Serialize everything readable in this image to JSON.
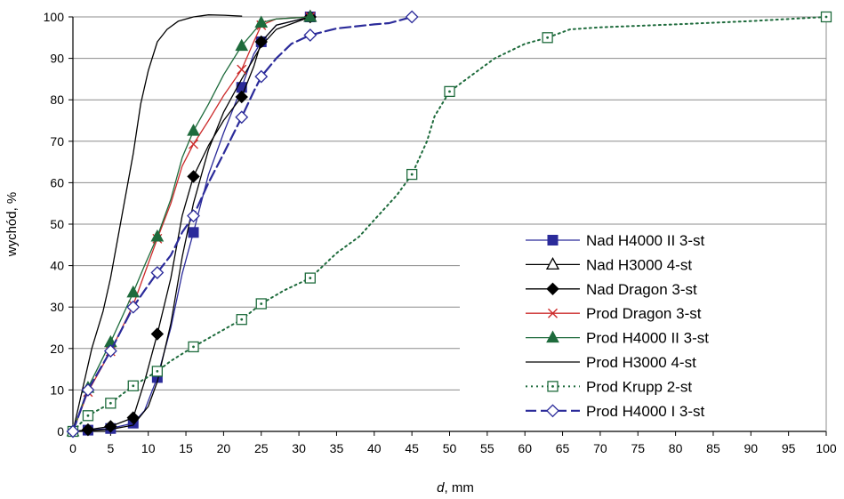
{
  "chart_data": {
    "type": "line",
    "xlabel": "d, mm",
    "xlabel_italic": "d",
    "xlabel_rest": ", mm",
    "ylabel": "wychód, %",
    "xlim": [
      0,
      100
    ],
    "ylim": [
      0,
      100
    ],
    "x_ticks": [
      "0",
      "5",
      "10",
      "15",
      "20",
      "25",
      "30",
      "35",
      "40",
      "45",
      "50",
      "55",
      "60",
      "65",
      "70",
      "75",
      "80",
      "85",
      "90",
      "95",
      "100"
    ],
    "y_ticks": [
      "0",
      "10",
      "20",
      "30",
      "40",
      "50",
      "60",
      "70",
      "80",
      "90",
      "100"
    ],
    "grid": "horizontal",
    "legend_position": "bottom-right",
    "series": [
      {
        "name": "Nad H4000 II 3-st",
        "color": "#2b2b9a",
        "dash": "solid",
        "marker": "square-filled",
        "markers": [
          [
            0,
            0
          ],
          [
            2,
            0.3
          ],
          [
            5,
            0.7
          ],
          [
            8,
            2
          ],
          [
            11.2,
            13
          ],
          [
            16,
            48
          ],
          [
            22.4,
            83
          ],
          [
            25,
            94
          ],
          [
            31.5,
            100
          ]
        ],
        "curve": [
          [
            0,
            0
          ],
          [
            2,
            0.3
          ],
          [
            5,
            0.7
          ],
          [
            8,
            2
          ],
          [
            9.5,
            5
          ],
          [
            11.2,
            13
          ],
          [
            13,
            25
          ],
          [
            14.5,
            38
          ],
          [
            16,
            48
          ],
          [
            18,
            62
          ],
          [
            20,
            72
          ],
          [
            22.4,
            83
          ],
          [
            24,
            91
          ],
          [
            25,
            94
          ],
          [
            27,
            98
          ],
          [
            31.5,
            100
          ]
        ]
      },
      {
        "name": "Nad H3000 4-st",
        "color": "#000000",
        "dash": "solid",
        "marker": "triangle-open",
        "markers": [
          [
            31.5,
            100
          ]
        ],
        "curve": [
          [
            0,
            0
          ],
          [
            2,
            0.2
          ],
          [
            5,
            0.5
          ],
          [
            8,
            1.5
          ],
          [
            10,
            6
          ],
          [
            11.2,
            12
          ],
          [
            13,
            26
          ],
          [
            14.5,
            42
          ],
          [
            16,
            55
          ],
          [
            18,
            68
          ],
          [
            20,
            77
          ],
          [
            22.4,
            85
          ],
          [
            25,
            93
          ],
          [
            27,
            97
          ],
          [
            31.5,
            100
          ]
        ]
      },
      {
        "name": "Nad Dragon 3-st",
        "color": "#000000",
        "dash": "solid",
        "marker": "diamond-filled",
        "markers": [
          [
            0,
            0
          ],
          [
            2,
            0.4
          ],
          [
            5,
            1.2
          ],
          [
            8,
            3.3
          ],
          [
            11.2,
            23.5
          ],
          [
            16,
            61.5
          ],
          [
            22.4,
            80.7
          ],
          [
            25,
            94
          ],
          [
            31.5,
            100
          ]
        ],
        "curve": [
          [
            0,
            0
          ],
          [
            2,
            0.4
          ],
          [
            5,
            1.2
          ],
          [
            8,
            3.3
          ],
          [
            9.5,
            12
          ],
          [
            11.2,
            23.5
          ],
          [
            13,
            37
          ],
          [
            14.5,
            52
          ],
          [
            16,
            61.5
          ],
          [
            18,
            69
          ],
          [
            20,
            75
          ],
          [
            22.4,
            80.7
          ],
          [
            24,
            88
          ],
          [
            25,
            94
          ],
          [
            27,
            98
          ],
          [
            31.5,
            100
          ]
        ]
      },
      {
        "name": "Prod Dragon 3-st",
        "color": "#cc2b2b",
        "dash": "solid",
        "marker": "x",
        "markers": [
          [
            0,
            0
          ],
          [
            2,
            9.5
          ],
          [
            5,
            19.3
          ],
          [
            8,
            30.5
          ],
          [
            11.2,
            46.5
          ],
          [
            16,
            69.3
          ],
          [
            22.4,
            87.3
          ],
          [
            25,
            98
          ],
          [
            31.5,
            100
          ]
        ],
        "curve": [
          [
            0,
            0
          ],
          [
            2,
            9.5
          ],
          [
            5,
            19.3
          ],
          [
            8,
            30.5
          ],
          [
            9.5,
            38
          ],
          [
            11.2,
            46.5
          ],
          [
            13,
            55
          ],
          [
            14.5,
            64
          ],
          [
            16,
            69.3
          ],
          [
            18,
            75
          ],
          [
            20,
            81
          ],
          [
            22.4,
            87.3
          ],
          [
            24,
            94
          ],
          [
            25,
            98
          ],
          [
            27,
            99.5
          ],
          [
            31.5,
            100
          ]
        ]
      },
      {
        "name": "Prod H4000 II 3-st",
        "color": "#1e6b3c",
        "dash": "solid",
        "marker": "triangle-filled",
        "markers": [
          [
            0,
            0
          ],
          [
            2,
            10.5
          ],
          [
            5,
            21.5
          ],
          [
            8,
            33.5
          ],
          [
            11.2,
            47
          ],
          [
            16,
            72.5
          ],
          [
            22.4,
            93
          ],
          [
            25,
            98.6
          ],
          [
            31.5,
            100
          ]
        ],
        "curve": [
          [
            0,
            0
          ],
          [
            2,
            10.5
          ],
          [
            5,
            21.5
          ],
          [
            8,
            33.5
          ],
          [
            9.5,
            40
          ],
          [
            11.2,
            47
          ],
          [
            13,
            56
          ],
          [
            14.5,
            66
          ],
          [
            16,
            72.5
          ],
          [
            18,
            79
          ],
          [
            20,
            86
          ],
          [
            22.4,
            93
          ],
          [
            25,
            98.6
          ],
          [
            27,
            99.5
          ],
          [
            31.5,
            100
          ]
        ]
      },
      {
        "name": "Prod H3000 4-st",
        "color": "#000000",
        "dash": "solid",
        "marker": "none",
        "markers": [],
        "curve": [
          [
            0,
            0
          ],
          [
            1.5,
            12
          ],
          [
            2.5,
            20
          ],
          [
            4,
            29
          ],
          [
            5,
            37
          ],
          [
            6,
            47
          ],
          [
            7,
            57
          ],
          [
            8,
            67
          ],
          [
            9,
            79
          ],
          [
            10,
            87
          ],
          [
            11.2,
            94
          ],
          [
            12.5,
            97
          ],
          [
            14,
            99
          ],
          [
            16,
            100
          ],
          [
            18,
            100.5
          ],
          [
            20,
            100.4
          ],
          [
            22.4,
            100.2
          ]
        ]
      },
      {
        "name": "Prod Krupp 2-st",
        "color": "#1e6b3c",
        "dash": "dotted",
        "marker": "square-open-dot",
        "markers": [
          [
            0,
            0
          ],
          [
            2,
            3.8
          ],
          [
            5,
            6.8
          ],
          [
            8,
            11
          ],
          [
            11.2,
            14.5
          ],
          [
            16,
            20.4
          ],
          [
            22.4,
            27
          ],
          [
            25,
            30.8
          ],
          [
            31.5,
            37
          ],
          [
            45,
            62
          ],
          [
            50,
            82
          ],
          [
            63,
            95
          ],
          [
            100,
            100
          ]
        ],
        "curve": [
          [
            0,
            0
          ],
          [
            2,
            3.8
          ],
          [
            5,
            6.8
          ],
          [
            8,
            11
          ],
          [
            11.2,
            14.5
          ],
          [
            13,
            17
          ],
          [
            16,
            20.4
          ],
          [
            19,
            23.5
          ],
          [
            22.4,
            27
          ],
          [
            25,
            30.8
          ],
          [
            28,
            34
          ],
          [
            31.5,
            37
          ],
          [
            35,
            43
          ],
          [
            38,
            47
          ],
          [
            40,
            51
          ],
          [
            43,
            57
          ],
          [
            45,
            62
          ],
          [
            47,
            70
          ],
          [
            48,
            76
          ],
          [
            50,
            82
          ],
          [
            53,
            86
          ],
          [
            56,
            90
          ],
          [
            60,
            93.5
          ],
          [
            63,
            95
          ],
          [
            66,
            97
          ],
          [
            70,
            97.5
          ],
          [
            80,
            98.2
          ],
          [
            90,
            99
          ],
          [
            100,
            100
          ]
        ]
      },
      {
        "name": "Prod H4000 I 3-st",
        "color": "#2b2b9a",
        "dash": "dashed",
        "marker": "diamond-open",
        "markers": [
          [
            0,
            0
          ],
          [
            2,
            10
          ],
          [
            5,
            19.4
          ],
          [
            8,
            30
          ],
          [
            11.2,
            38.3
          ],
          [
            16,
            52
          ],
          [
            22.4,
            75.8
          ],
          [
            25,
            85.6
          ],
          [
            31.5,
            95.6
          ],
          [
            45,
            100
          ]
        ],
        "curve": [
          [
            0,
            0
          ],
          [
            2,
            10
          ],
          [
            5,
            19.4
          ],
          [
            8,
            30
          ],
          [
            9.5,
            34
          ],
          [
            11.2,
            38.3
          ],
          [
            13,
            42.5
          ],
          [
            14.5,
            48
          ],
          [
            16,
            52
          ],
          [
            18,
            60
          ],
          [
            20,
            67
          ],
          [
            22.4,
            75.8
          ],
          [
            24,
            82
          ],
          [
            25,
            85.6
          ],
          [
            27,
            90
          ],
          [
            29,
            93.5
          ],
          [
            31.5,
            95.6
          ],
          [
            35,
            97.2
          ],
          [
            40,
            98.2
          ],
          [
            42,
            98.5
          ],
          [
            45,
            100
          ]
        ]
      }
    ]
  }
}
